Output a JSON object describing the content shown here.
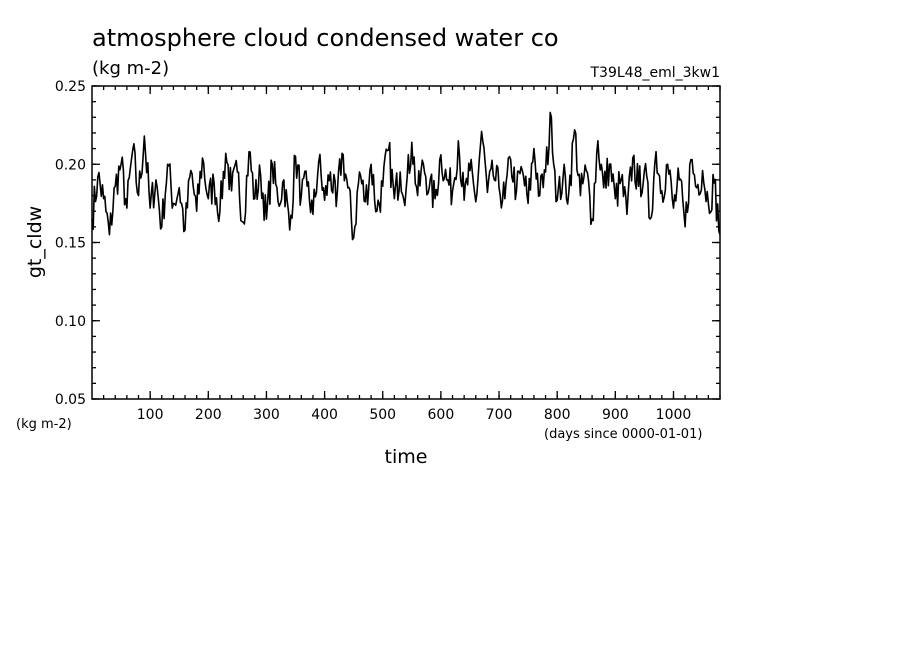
{
  "chart_data": {
    "type": "line",
    "title": "atmosphere cloud condensed water co",
    "subtitle_left": "(kg m-2)",
    "subtitle_right": "T39L48_eml_3kw1",
    "xlabel": "time",
    "xunits": "(days since 0000-01-01)",
    "ylabel": "gt_cldw",
    "yunits": "(kg m-2)",
    "xlim": [
      0,
      1080
    ],
    "ylim": [
      0.05,
      0.25
    ],
    "xticks": [
      100,
      200,
      300,
      400,
      500,
      600,
      700,
      800,
      900,
      1000
    ],
    "yticks": [
      0.05,
      0.1,
      0.15,
      0.2,
      0.25
    ],
    "x": [
      0,
      10,
      20,
      30,
      40,
      50,
      60,
      70,
      80,
      90,
      100,
      110,
      120,
      130,
      140,
      150,
      160,
      170,
      180,
      190,
      200,
      210,
      220,
      230,
      240,
      250,
      260,
      270,
      280,
      290,
      300,
      310,
      320,
      330,
      340,
      350,
      360,
      370,
      380,
      390,
      400,
      410,
      420,
      430,
      440,
      450,
      460,
      470,
      480,
      490,
      500,
      510,
      520,
      530,
      540,
      550,
      560,
      570,
      580,
      590,
      600,
      610,
      620,
      630,
      640,
      650,
      660,
      670,
      680,
      690,
      700,
      710,
      720,
      730,
      740,
      750,
      760,
      770,
      780,
      790,
      800,
      810,
      820,
      830,
      840,
      850,
      860,
      870,
      880,
      890,
      900,
      910,
      920,
      930,
      940,
      950,
      960,
      970,
      980,
      990,
      1000,
      1010,
      1020,
      1030,
      1040,
      1050,
      1060,
      1070,
      1080
    ],
    "series": [
      {
        "name": "gt_cldw",
        "values": [
          0.165,
          0.192,
          0.178,
          0.155,
          0.186,
          0.2,
          0.172,
          0.209,
          0.18,
          0.218,
          0.172,
          0.19,
          0.16,
          0.2,
          0.175,
          0.185,
          0.158,
          0.196,
          0.17,
          0.204,
          0.178,
          0.188,
          0.17,
          0.207,
          0.183,
          0.195,
          0.163,
          0.208,
          0.178,
          0.193,
          0.165,
          0.2,
          0.176,
          0.19,
          0.158,
          0.205,
          0.18,
          0.186,
          0.168,
          0.202,
          0.177,
          0.195,
          0.173,
          0.207,
          0.185,
          0.153,
          0.195,
          0.176,
          0.2,
          0.17,
          0.186,
          0.209,
          0.178,
          0.195,
          0.183,
          0.214,
          0.18,
          0.2,
          0.185,
          0.178,
          0.206,
          0.19,
          0.183,
          0.215,
          0.177,
          0.196,
          0.176,
          0.221,
          0.182,
          0.193,
          0.185,
          0.178,
          0.203,
          0.183,
          0.196,
          0.175,
          0.21,
          0.18,
          0.195,
          0.23,
          0.177,
          0.191,
          0.182,
          0.222,
          0.18,
          0.196,
          0.165,
          0.215,
          0.185,
          0.2,
          0.178,
          0.19,
          0.168,
          0.204,
          0.186,
          0.196,
          0.165,
          0.208,
          0.183,
          0.2,
          0.172,
          0.19,
          0.16,
          0.203,
          0.185,
          0.196,
          0.175,
          0.188,
          0.155
        ],
        "color": "#000000"
      }
    ]
  }
}
